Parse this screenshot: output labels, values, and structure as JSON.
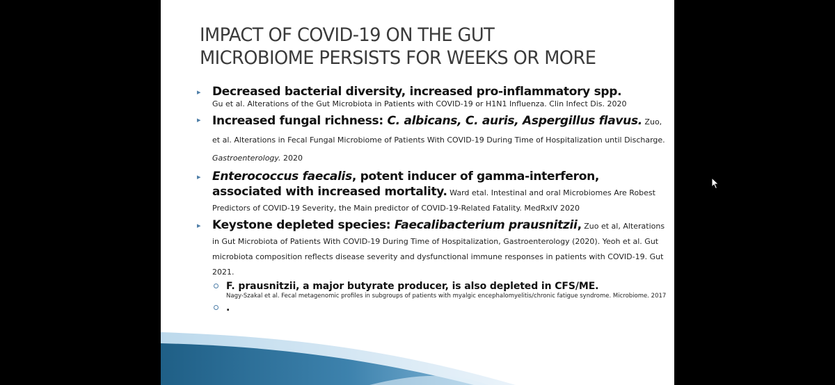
{
  "slide": {
    "title_line1": "IMPACT OF COVID-19 ON THE GUT",
    "title_line2": "MICROBIOME PERSISTS FOR WEEKS OR MORE",
    "items": [
      {
        "headline": "Decreased bacterial diversity, increased pro-inflammatory spp.",
        "citation": "Gu et al. Alterations of the Gut Microbiota in Patients with COVID-19 or H1N1 Influenza. Clin Infect Dis. 2020"
      },
      {
        "headline_a": "Increased fungal richness",
        "headline_b": ": ",
        "headline_it": "C. albicans, C. auris, Aspergillus flavus.",
        "citation_a": " Zuo, et al. Alterations in Fecal Fungal Microbiome of Patients With COVID-19 During Time of Hospitalization until Discharge. ",
        "citation_it": "Gastroenterology.",
        "citation_b": " 2020"
      },
      {
        "headline_it": "Enterococcus faecalis",
        "headline_b": ", potent inducer of gamma-interferon, associated with increased mortality.",
        "citation": " Ward etal. Intestinal and oral Microbiomes Are Robest Predictors of COVID-19 Severity, the Main predictor of COVID-19-Related Fatality. MedRxIV 2020"
      },
      {
        "headline_a": "Keystone depleted species: ",
        "headline_it": "Faecalibacterium prausnitzii",
        "headline_b": ",",
        "citation": " Zuo et al, Alterations in Gut Microbiota of Patients With COVID-19 During Time of Hospitalization, Gastroenterology (2020). Yeoh  et al. Gut microbiota composition reflects disease severity and dysfunctional immune responses in patients with COVID-19. Gut 2021."
      }
    ],
    "sub_items": [
      {
        "headline": "F. prausnitzii, a major butyrate producer, is also depleted in CFS/ME.",
        "citation": "Nagy-Szakal  et al. Fecal metagenomic profiles in subgroups of patients with myalgic encephalomyelitis/chronic  fatigue syndrome. Microbiome. 2017"
      },
      {
        "headline": "."
      }
    ]
  },
  "colors": {
    "background": "#000000",
    "slide": "#ffffff",
    "title": "#3a3a3a",
    "bullet": "#4f7fa8",
    "swoosh_dark": "#1f5f86",
    "swoosh_light": "#7fb4d6"
  }
}
